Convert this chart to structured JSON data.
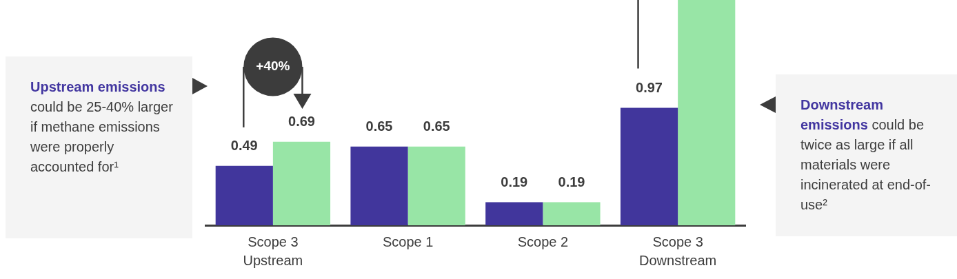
{
  "chart_data": {
    "type": "bar",
    "categories": [
      "Scope 3 Upstream",
      "Scope 1",
      "Scope 2",
      "Scope 3 Downstream"
    ],
    "series": [
      {
        "color": "#41369c",
        "values": [
          0.49,
          0.65,
          0.19,
          0.97
        ],
        "value_labels": [
          "0.49",
          "0.65",
          "0.19",
          "0.97"
        ]
      },
      {
        "color": "#98e5a6",
        "values": [
          0.69,
          0.65,
          0.19,
          1.86
        ],
        "value_labels": [
          "0.69",
          "0.65",
          "0.19",
          null
        ]
      }
    ],
    "ylim": [
      0,
      1.86
    ],
    "tick_labels": "x",
    "grid": false,
    "legend": false,
    "annotations": [
      "Upstream emissions",
      "could be 25-40% larger if methane emissions were properly accounted for¹",
      "+40%",
      "Downstream emissions",
      "could be twice as large if all materials were incinerated at end-of-use²"
    ]
  }
}
